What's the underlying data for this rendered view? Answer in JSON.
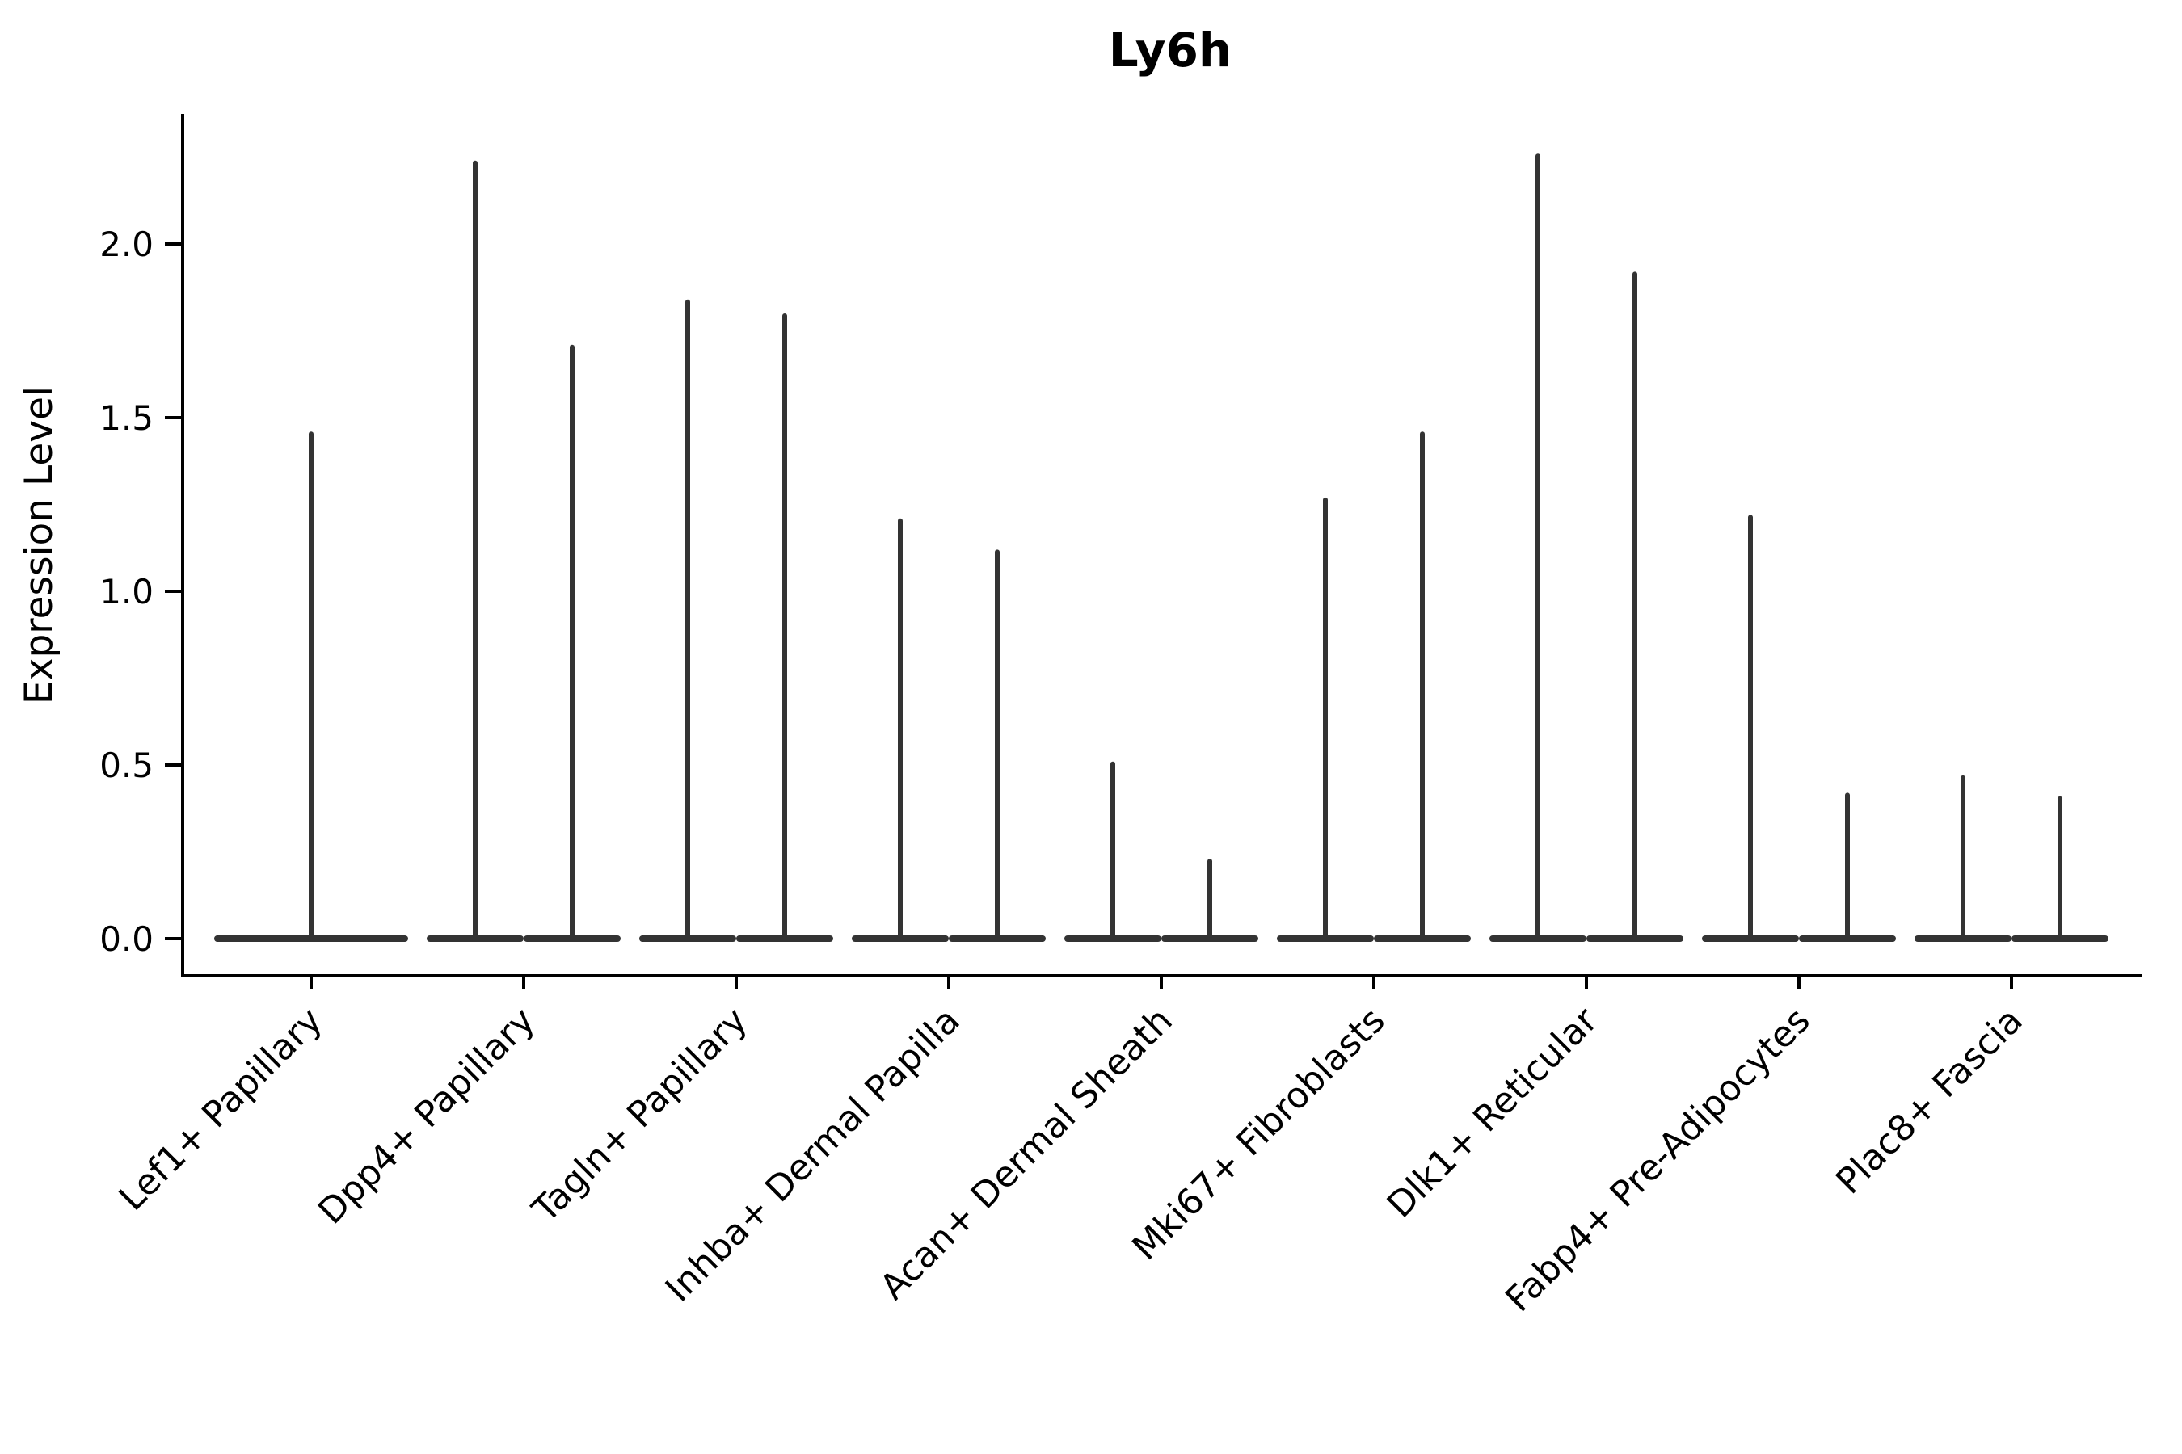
{
  "title": "Ly6h",
  "ylabel": "Expression Level",
  "chart_data": {
    "type": "violin",
    "title": "Ly6h",
    "xlabel": "",
    "ylabel": "Expression Level",
    "categories": [
      "Lef1+ Papillary",
      "Dpp4+ Papillary",
      "Tagln+ Papillary",
      "Inhba+ Dermal Papilla",
      "Acan+ Dermal Sheath",
      "Mki67+ Fibroblasts",
      "Dlk1+ Reticular",
      "Fabp4+ Pre-Adipocytes",
      "Plac8+ Fascia"
    ],
    "violin_maxima_per_category": [
      [
        1.46
      ],
      [
        2.24,
        1.71
      ],
      [
        1.84,
        1.8
      ],
      [
        1.21,
        1.12
      ],
      [
        0.51,
        0.23
      ],
      [
        1.27,
        1.46
      ],
      [
        2.26,
        1.92
      ],
      [
        1.22,
        0.42
      ],
      [
        0.47,
        0.41
      ]
    ],
    "violin_minimum": 0.0,
    "violin_shape_note": "wide flat base at 0 with hairline density spike up to the max expression value",
    "yticks": [
      0.0,
      0.5,
      1.0,
      1.5,
      2.0
    ],
    "ytick_labels": [
      "0.0",
      "0.5",
      "1.0",
      "1.5",
      "2.0"
    ],
    "ylim": [
      -0.11,
      2.38
    ],
    "grid": "off",
    "legend": "none",
    "xtick_label_rotation_deg": 45
  },
  "colors": {
    "violin": "#333333",
    "axis": "#000000",
    "text": "#000000",
    "background": "#ffffff"
  }
}
